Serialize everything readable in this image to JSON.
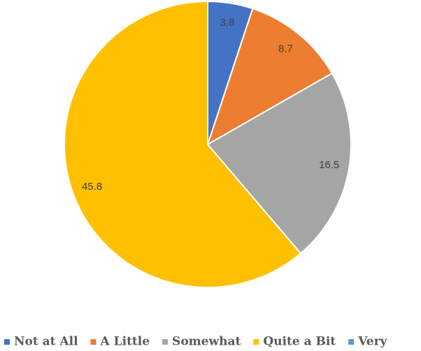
{
  "chart_data": {
    "type": "pie",
    "categories": [
      "Not at All",
      "A Little",
      "Somewhat",
      "Quite a Bit",
      "Very"
    ],
    "values": [
      3.8,
      8.7,
      16.5,
      45.8,
      0
    ],
    "colors": [
      "#4472c4",
      "#ed7d31",
      "#a5a5a5",
      "#ffc000",
      "#5b9bd5"
    ],
    "legend": "bottom"
  }
}
